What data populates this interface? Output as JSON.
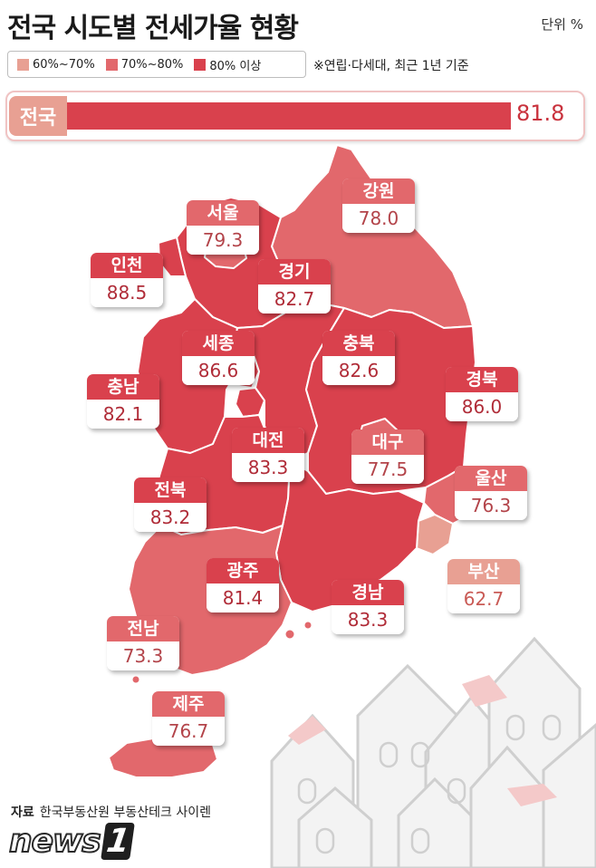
{
  "title": "전국 시도별 전세가율 현황",
  "unit": "단위 %",
  "legend": [
    {
      "label": "60%~70%",
      "color": "#e8a093"
    },
    {
      "label": "70%~80%",
      "color": "#e2686c"
    },
    {
      "label": "80% 이상",
      "color": "#d9414d"
    }
  ],
  "note": "※연립·다세대, 최근 1년 기준",
  "national": {
    "label": "전국",
    "value": "81.8",
    "fraction": 0.818
  },
  "regions": [
    {
      "name": "강원",
      "value": "78.0",
      "tier": "mid"
    },
    {
      "name": "서울",
      "value": "79.3",
      "tier": "mid"
    },
    {
      "name": "인천",
      "value": "88.5",
      "tier": "high"
    },
    {
      "name": "경기",
      "value": "82.7",
      "tier": "high"
    },
    {
      "name": "세종",
      "value": "86.6",
      "tier": "high"
    },
    {
      "name": "충북",
      "value": "82.6",
      "tier": "high"
    },
    {
      "name": "충남",
      "value": "82.1",
      "tier": "high"
    },
    {
      "name": "경북",
      "value": "86.0",
      "tier": "high"
    },
    {
      "name": "대전",
      "value": "83.3",
      "tier": "high"
    },
    {
      "name": "대구",
      "value": "77.5",
      "tier": "mid"
    },
    {
      "name": "전북",
      "value": "83.2",
      "tier": "high"
    },
    {
      "name": "울산",
      "value": "76.3",
      "tier": "mid"
    },
    {
      "name": "광주",
      "value": "81.4",
      "tier": "high"
    },
    {
      "name": "경남",
      "value": "83.3",
      "tier": "high"
    },
    {
      "name": "부산",
      "value": "62.7",
      "tier": "low"
    },
    {
      "name": "전남",
      "value": "73.3",
      "tier": "mid"
    },
    {
      "name": "제주",
      "value": "76.7",
      "tier": "mid"
    }
  ],
  "source_label": "자료",
  "source_text": "한국부동산원 부동산테크 사이렌",
  "logo": {
    "main": "news",
    "mark": "1"
  }
}
